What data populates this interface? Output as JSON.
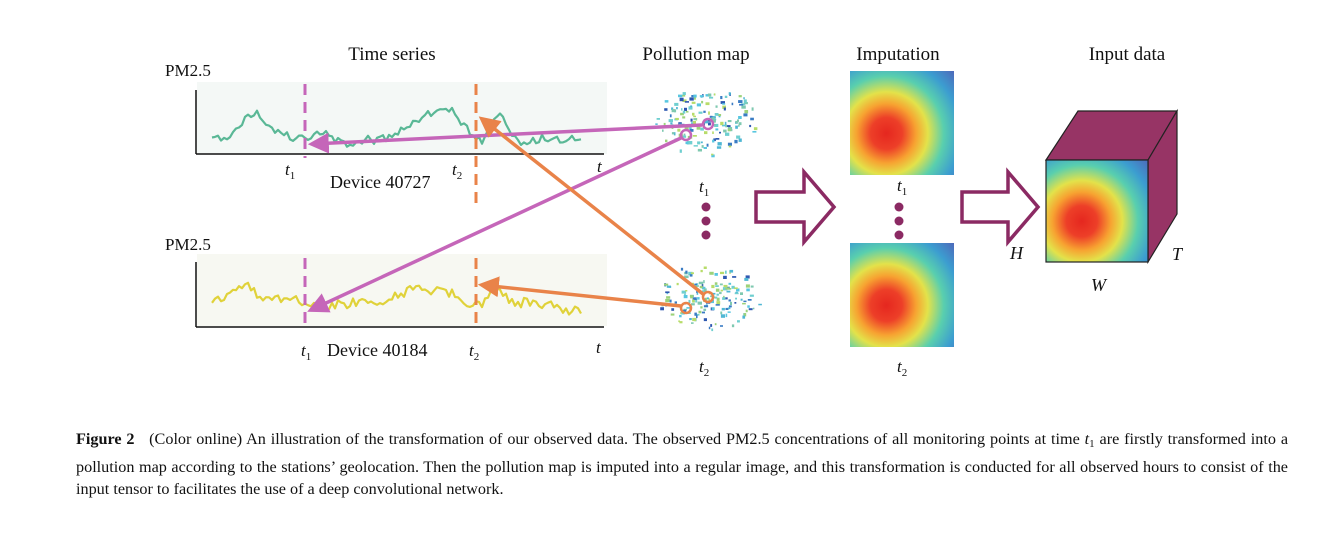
{
  "panels": {
    "time_series": "Time series",
    "pollution_map": "Pollution map",
    "imputation": "Imputation",
    "input_data": "Input data"
  },
  "series_top": {
    "ylabel": "PM2.5",
    "device": "Device 40727",
    "t1": "t",
    "t1_sub": "1",
    "t2": "t",
    "t2_sub": "2",
    "axis_end": "t"
  },
  "series_bottom": {
    "ylabel": "PM2.5",
    "device": "Device 40184",
    "t1": "t",
    "t1_sub": "1",
    "t2": "t",
    "t2_sub": "2",
    "axis_end": "t"
  },
  "map_labels": {
    "top": "t",
    "top_sub": "1",
    "bottom": "t",
    "bottom_sub": "2"
  },
  "imputation_labels": {
    "top": "t",
    "top_sub": "1",
    "bottom": "t",
    "bottom_sub": "2"
  },
  "cube_labels": {
    "h": "H",
    "w": "W",
    "t": "T"
  },
  "colors": {
    "teal_series": "#5ab896",
    "yellow_series": "#e0d23a",
    "purple": "#c566b9",
    "orange": "#e98349",
    "cube": "#973465",
    "arrow_outline": "#8b2a63"
  },
  "caption": {
    "label": "Figure 2",
    "text_before": "(Color online) An illustration of the transformation of our observed data. The observed PM2.5 concentrations of all monitoring points at time ",
    "var": "t",
    "var_sub": "1",
    "text_after": " are firstly transformed into a pollution map according to the stations’ geolocation. Then the pollution map is imputed into a regular image, and this transformation is conducted for all observed hours to consist of the input tensor to facilitates the use of a deep convolutional network."
  }
}
